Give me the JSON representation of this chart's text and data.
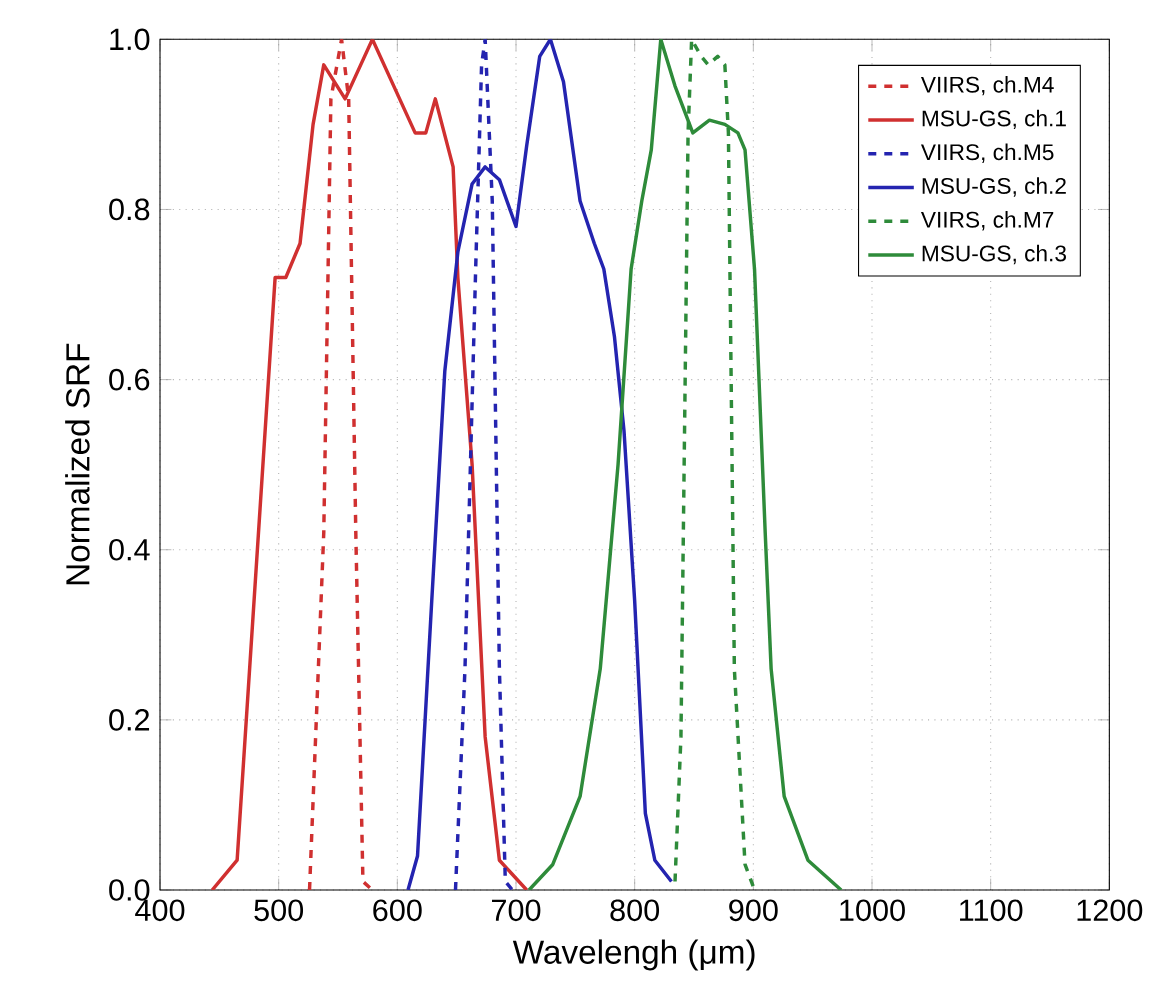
{
  "chart_data": {
    "type": "line",
    "xlabel": "Wavelengh (μm)",
    "ylabel": "Normalized SRF",
    "xlim": [
      400,
      1200
    ],
    "ylim": [
      0,
      1
    ],
    "xticks": [
      400,
      500,
      600,
      700,
      800,
      900,
      1000,
      1100,
      1200
    ],
    "yticks": [
      {
        "value": 0,
        "label": "0.0"
      },
      {
        "value": 0.2,
        "label": "0.2"
      },
      {
        "value": 0.4,
        "label": "0.4"
      },
      {
        "value": 0.6,
        "label": "0.6"
      },
      {
        "value": 0.8,
        "label": "0.8"
      },
      {
        "value": 1,
        "label": "1.0"
      }
    ],
    "grid": true,
    "legend": "top right",
    "marker": "none",
    "series": [
      {
        "name": "VIIRS, ch.M4",
        "color": "#d03030",
        "line_style": "dashed",
        "x": [
          526,
          538,
          544,
          553,
          559,
          565,
          571,
          579
        ],
        "values": [
          0,
          0.42,
          0.93,
          1.0,
          0.93,
          0.42,
          0.01,
          0
        ]
      },
      {
        "name": "MSU-GS, ch.1",
        "color": "#d03030",
        "line_style": "solid",
        "x": [
          444,
          465,
          497,
          506,
          518,
          529,
          538,
          556,
          579,
          597,
          615,
          624,
          632,
          647,
          651,
          663,
          674,
          686,
          709
        ],
        "values": [
          0,
          0.035,
          0.72,
          0.72,
          0.76,
          0.9,
          0.97,
          0.93,
          1.0,
          0.945,
          0.89,
          0.89,
          0.93,
          0.85,
          0.72,
          0.5,
          0.18,
          0.035,
          0
        ]
      },
      {
        "name": "VIIRS, ch.M5",
        "color": "#2424b0",
        "line_style": "dashed",
        "x": [
          649,
          657,
          666,
          671,
          674,
          680,
          686,
          691,
          697
        ],
        "values": [
          0,
          0.26,
          0.73,
          0.97,
          1.0,
          0.81,
          0.26,
          0.01,
          0
        ]
      },
      {
        "name": "MSU-GS, ch.2",
        "color": "#2424b0",
        "line_style": "solid",
        "x": [
          609,
          617,
          629,
          640,
          651,
          663,
          674,
          686,
          700,
          709,
          720,
          729,
          740,
          754,
          766,
          774,
          783,
          791,
          800,
          809,
          817,
          831
        ],
        "values": [
          0,
          0.04,
          0.34,
          0.61,
          0.75,
          0.83,
          0.85,
          0.835,
          0.78,
          0.875,
          0.98,
          1.0,
          0.95,
          0.81,
          0.76,
          0.73,
          0.65,
          0.54,
          0.34,
          0.09,
          0.035,
          0.01
        ]
      },
      {
        "name": "VIIRS, ch.M7",
        "color": "#2e8b3a",
        "line_style": "dashed",
        "x": [
          834,
          839,
          845,
          848,
          856,
          862,
          870,
          876,
          879,
          884,
          893,
          901
        ],
        "values": [
          0.01,
          0.18,
          0.89,
          1.0,
          0.98,
          0.97,
          0.98,
          0.97,
          0.89,
          0.26,
          0.03,
          0
        ]
      },
      {
        "name": "MSU-GS, ch.3",
        "color": "#2e8b3a",
        "line_style": "solid",
        "x": [
          711,
          731,
          754,
          771,
          786,
          797,
          806,
          814,
          822,
          834,
          849,
          863,
          876,
          887,
          893,
          901,
          910,
          915,
          926,
          946,
          974
        ],
        "values": [
          0,
          0.03,
          0.11,
          0.26,
          0.5,
          0.73,
          0.81,
          0.87,
          1.0,
          0.945,
          0.89,
          0.905,
          0.9,
          0.89,
          0.87,
          0.73,
          0.42,
          0.26,
          0.11,
          0.035,
          0
        ]
      }
    ]
  }
}
